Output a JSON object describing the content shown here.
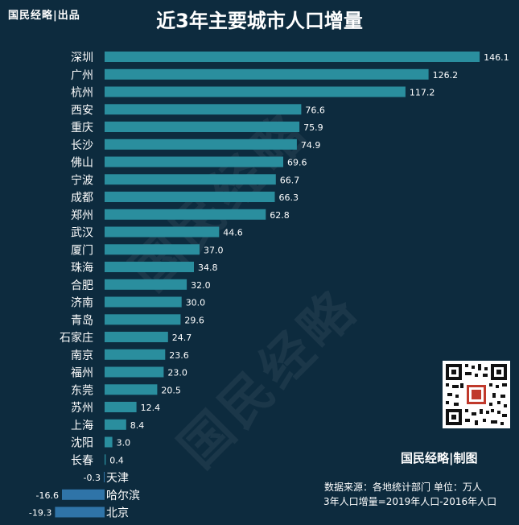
{
  "brand_top": "国民经略|出品",
  "brand_bottom": "国民经略|制图",
  "notes": {
    "source": "数据来源：各地统计部门 单位：万人",
    "definition": "3年人口增量=2019年人口-2016年人口"
  },
  "watermark": "国民经略",
  "colors": {
    "background": "#0d2b3e",
    "bar_positive": "#2a8e9e",
    "bar_negative": "#2f74a8",
    "text": "#ffffff"
  },
  "chart_data": {
    "type": "bar",
    "orientation": "horizontal",
    "title": "近3年主要城市人口增量",
    "xlabel": "",
    "ylabel": "",
    "categories": [
      "深圳",
      "广州",
      "杭州",
      "西安",
      "重庆",
      "长沙",
      "佛山",
      "宁波",
      "成都",
      "郑州",
      "武汉",
      "厦门",
      "珠海",
      "合肥",
      "济南",
      "青岛",
      "石家庄",
      "南京",
      "福州",
      "东莞",
      "苏州",
      "上海",
      "沈阳",
      "长春",
      "天津",
      "哈尔滨",
      "北京"
    ],
    "values": [
      146.1,
      126.2,
      117.2,
      76.6,
      75.9,
      74.9,
      69.6,
      66.7,
      66.3,
      62.8,
      44.6,
      37.0,
      34.8,
      32.0,
      30.0,
      29.6,
      24.7,
      23.6,
      23.0,
      20.5,
      12.4,
      8.4,
      3.0,
      0.4,
      -0.3,
      -16.6,
      -19.3
    ],
    "value_labels": [
      "146.1",
      "126.2",
      "117.2",
      "76.6",
      "75.9",
      "74.9",
      "69.6",
      "66.7",
      "66.3",
      "62.8",
      "44.6",
      "37.0",
      "34.8",
      "32.0",
      "30.0",
      "29.6",
      "24.7",
      "23.6",
      "23.0",
      "20.5",
      "12.4",
      "8.4",
      "3.0",
      "0.4",
      "-0.3",
      "-16.6",
      "-19.3"
    ],
    "grid": false,
    "legend": "none"
  }
}
